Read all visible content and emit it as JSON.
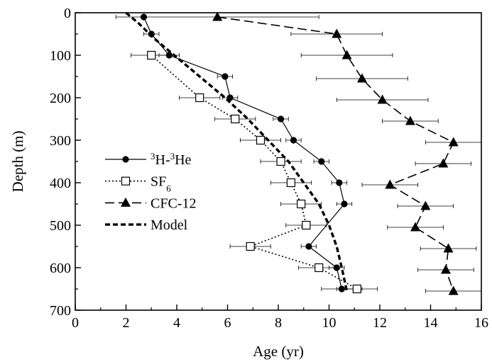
{
  "chart_data": {
    "type": "line",
    "orientation": "depth-profile",
    "xlabel": "Age (yr)",
    "ylabel": "Depth (m)",
    "xlim": [
      0,
      16
    ],
    "ylim": [
      0,
      700
    ],
    "y_inverted": true,
    "x_ticks": [
      "0",
      "2",
      "4",
      "6",
      "8",
      "10",
      "12",
      "14",
      "16"
    ],
    "y_ticks": [
      "0",
      "100",
      "200",
      "300",
      "400",
      "500",
      "600",
      "700"
    ],
    "grid": false,
    "legend_position": "left-center",
    "series": [
      {
        "name": "³H-³He",
        "marker": "filled-circle",
        "line": "solid",
        "points": [
          {
            "age": 2.7,
            "depth": 10,
            "err": 0.0
          },
          {
            "age": 3.0,
            "depth": 50,
            "err": 0.3
          },
          {
            "age": 3.7,
            "depth": 100,
            "err": 0.4
          },
          {
            "age": 5.9,
            "depth": 150,
            "err": 0.3
          },
          {
            "age": 6.1,
            "depth": 200,
            "err": 0.3
          },
          {
            "age": 8.1,
            "depth": 250,
            "err": 0.3
          },
          {
            "age": 8.6,
            "depth": 300,
            "err": 0.3
          },
          {
            "age": 9.7,
            "depth": 350,
            "err": 0.3
          },
          {
            "age": 10.4,
            "depth": 400,
            "err": 0.3
          },
          {
            "age": 10.6,
            "depth": 450,
            "err": 0.3
          },
          {
            "age": 9.2,
            "depth": 550,
            "err": 0.3
          },
          {
            "age": 10.3,
            "depth": 600,
            "err": 0.3
          },
          {
            "age": 10.5,
            "depth": 650,
            "err": 0.8
          }
        ]
      },
      {
        "name": "SF6",
        "marker": "open-square",
        "line": "dotted",
        "points": [
          {
            "age": 3.0,
            "depth": 100,
            "err": 0.8
          },
          {
            "age": 4.9,
            "depth": 200,
            "err": 0.8
          },
          {
            "age": 6.3,
            "depth": 250,
            "err": 0.8
          },
          {
            "age": 7.3,
            "depth": 300,
            "err": 0.8
          },
          {
            "age": 8.1,
            "depth": 350,
            "err": 0.8
          },
          {
            "age": 8.5,
            "depth": 400,
            "err": 0.8
          },
          {
            "age": 8.9,
            "depth": 450,
            "err": 0.8
          },
          {
            "age": 9.1,
            "depth": 500,
            "err": 0.8
          },
          {
            "age": 6.9,
            "depth": 550,
            "err": 0.8
          },
          {
            "age": 9.6,
            "depth": 600,
            "err": 0.8
          },
          {
            "age": 11.1,
            "depth": 650,
            "err": 0.8
          }
        ]
      },
      {
        "name": "CFC-12",
        "marker": "filled-triangle",
        "line": "long-dash",
        "points": [
          {
            "age": 5.6,
            "depth": 10,
            "err": 4.0
          },
          {
            "age": 10.3,
            "depth": 50,
            "err": 1.8
          },
          {
            "age": 10.7,
            "depth": 100,
            "err": 1.8
          },
          {
            "age": 11.3,
            "depth": 155,
            "err": 1.8
          },
          {
            "age": 12.1,
            "depth": 205,
            "err": 1.8
          },
          {
            "age": 13.2,
            "depth": 255,
            "err": 1.1
          },
          {
            "age": 14.9,
            "depth": 305,
            "err": 1.1
          },
          {
            "age": 14.5,
            "depth": 355,
            "err": 1.1
          },
          {
            "age": 12.4,
            "depth": 405,
            "err": 1.1
          },
          {
            "age": 13.8,
            "depth": 455,
            "err": 1.1
          },
          {
            "age": 13.4,
            "depth": 505,
            "err": 1.1
          },
          {
            "age": 14.7,
            "depth": 555,
            "err": 1.1
          },
          {
            "age": 14.6,
            "depth": 605,
            "err": 1.1
          },
          {
            "age": 14.9,
            "depth": 655,
            "err": 1.1
          }
        ]
      },
      {
        "name": "Model",
        "marker": "none",
        "line": "short-dash-bold",
        "points": [
          {
            "age": 2.0,
            "depth": 0
          },
          {
            "age": 2.5,
            "depth": 25
          },
          {
            "age": 3.1,
            "depth": 60
          },
          {
            "age": 3.9,
            "depth": 100
          },
          {
            "age": 4.9,
            "depth": 150
          },
          {
            "age": 5.9,
            "depth": 200
          },
          {
            "age": 6.8,
            "depth": 250
          },
          {
            "age": 7.6,
            "depth": 300
          },
          {
            "age": 8.4,
            "depth": 350
          },
          {
            "age": 9.0,
            "depth": 400
          },
          {
            "age": 9.6,
            "depth": 450
          },
          {
            "age": 10.0,
            "depth": 500
          },
          {
            "age": 10.3,
            "depth": 550
          },
          {
            "age": 10.5,
            "depth": 600
          },
          {
            "age": 10.7,
            "depth": 655
          }
        ]
      }
    ],
    "legend": {
      "items": [
        {
          "label_parts": [
            {
              "t": "3",
              "s": "sup"
            },
            {
              "t": "H-"
            },
            {
              "t": "3",
              "s": "sup"
            },
            {
              "t": "He"
            }
          ],
          "marker": "filled-circle",
          "line": "solid"
        },
        {
          "label_parts": [
            {
              "t": "SF"
            },
            {
              "t": "6",
              "s": "sub"
            }
          ],
          "marker": "open-square",
          "line": "dotted"
        },
        {
          "label_parts": [
            {
              "t": "CFC-12"
            }
          ],
          "marker": "filled-triangle",
          "line": "long-dash"
        },
        {
          "label_parts": [
            {
              "t": "Model"
            }
          ],
          "marker": "none",
          "line": "short-dash-bold"
        }
      ]
    }
  }
}
